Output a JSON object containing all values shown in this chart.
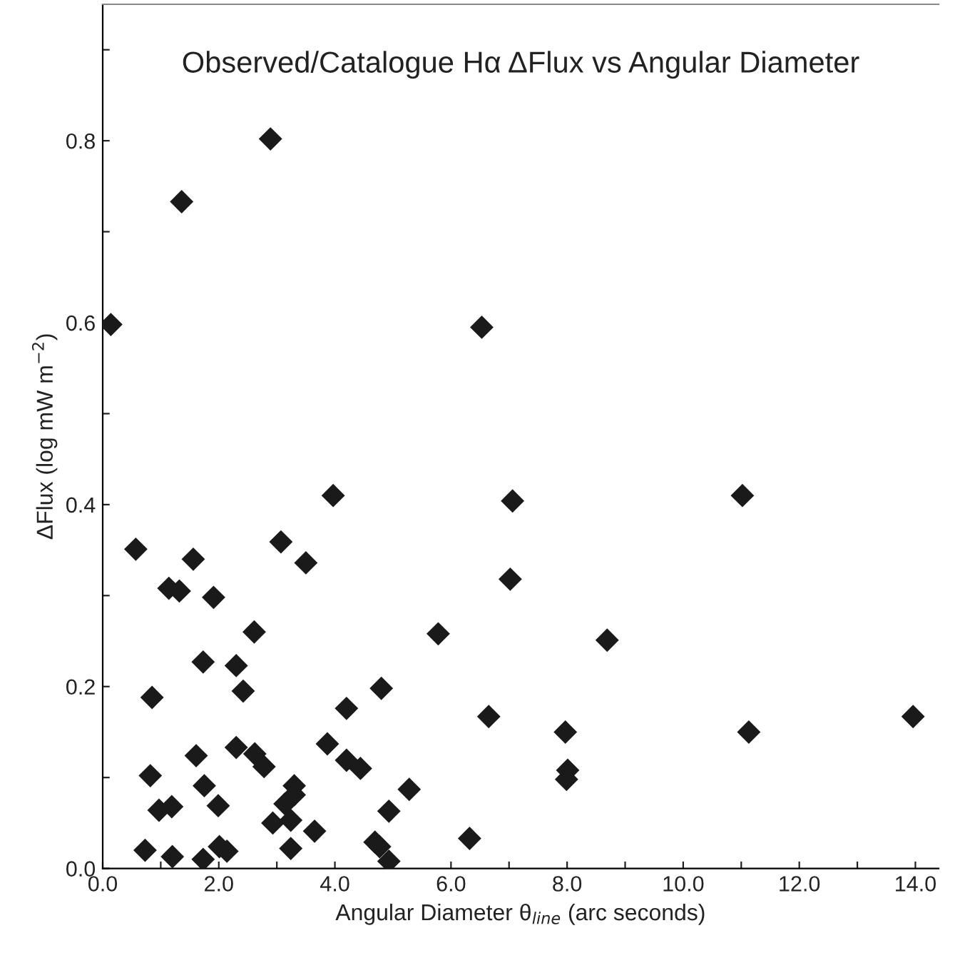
{
  "chart_data": {
    "type": "scatter",
    "title": "Observed/Catalogue Hα ΔFlux vs Angular Diameter",
    "xlabel": "Angular Diameter θ$_{line}$ (arc seconds)",
    "ylabel": "ΔFlux (log mW m$^{−2}$)",
    "marker": "diamond",
    "xlim": [
      0,
      14.4
    ],
    "ylim": [
      0,
      0.95
    ],
    "xticks": [
      {
        "value": 0,
        "label": "0.0"
      },
      {
        "value": 1,
        "label": null
      },
      {
        "value": 2,
        "label": "2.0"
      },
      {
        "value": 3,
        "label": null
      },
      {
        "value": 4,
        "label": "4.0"
      },
      {
        "value": 5,
        "label": null
      },
      {
        "value": 6,
        "label": "6.0"
      },
      {
        "value": 7,
        "label": null
      },
      {
        "value": 8,
        "label": "8.0"
      },
      {
        "value": 9,
        "label": null
      },
      {
        "value": 10,
        "label": "10.0"
      },
      {
        "value": 11,
        "label": null
      },
      {
        "value": 12,
        "label": "12.0"
      },
      {
        "value": 13,
        "label": null
      },
      {
        "value": 14,
        "label": "14.0"
      }
    ],
    "yticks": [
      {
        "value": 0,
        "label": "0.0"
      },
      {
        "value": 0.1,
        "label": null
      },
      {
        "value": 0.2,
        "label": "0.2"
      },
      {
        "value": 0.3,
        "label": null
      },
      {
        "value": 0.4,
        "label": "0.4"
      },
      {
        "value": 0.5,
        "label": null
      },
      {
        "value": 0.6,
        "label": "0.6"
      },
      {
        "value": 0.7,
        "label": null
      },
      {
        "value": 0.8,
        "label": "0.8"
      },
      {
        "value": 0.9,
        "label": null
      }
    ],
    "series": [
      {
        "color": "#1a1a1a",
        "x": [
          0.14,
          1.36,
          2.89,
          6.53,
          3.97,
          0.57,
          3.07,
          1.56,
          3.5,
          1.14,
          1.32,
          1.91,
          2.61,
          5.78,
          1.73,
          2.3,
          2.42,
          0.85,
          4.8,
          4.2,
          6.65,
          3.87,
          2.3,
          1.61,
          2.62,
          2.78,
          4.2,
          4.44,
          0.82,
          1.75,
          3.3,
          3.3,
          5.28,
          3.14,
          1.99,
          1.19,
          0.97,
          4.93,
          2.93,
          3.24,
          3.65,
          4.69,
          4.77,
          6.32,
          0.73,
          3.24,
          2.01,
          2.14,
          1.2,
          1.73,
          4.93,
          7.06,
          11.02,
          7.02,
          8.69,
          7.97,
          11.13,
          13.96,
          8.01,
          7.99
        ],
        "values": [
          0.598,
          0.733,
          0.802,
          0.595,
          0.41,
          0.351,
          0.359,
          0.34,
          0.336,
          0.308,
          0.305,
          0.298,
          0.26,
          0.258,
          0.227,
          0.223,
          0.195,
          0.188,
          0.198,
          0.176,
          0.167,
          0.137,
          0.133,
          0.124,
          0.126,
          0.112,
          0.119,
          0.11,
          0.102,
          0.091,
          0.091,
          0.081,
          0.087,
          0.071,
          0.069,
          0.068,
          0.064,
          0.063,
          0.05,
          0.053,
          0.041,
          0.029,
          0.024,
          0.033,
          0.02,
          0.022,
          0.024,
          0.019,
          0.013,
          0.01,
          0.008,
          0.404,
          0.41,
          0.318,
          0.251,
          0.15,
          0.15,
          0.167,
          0.108,
          0.098
        ]
      }
    ]
  }
}
